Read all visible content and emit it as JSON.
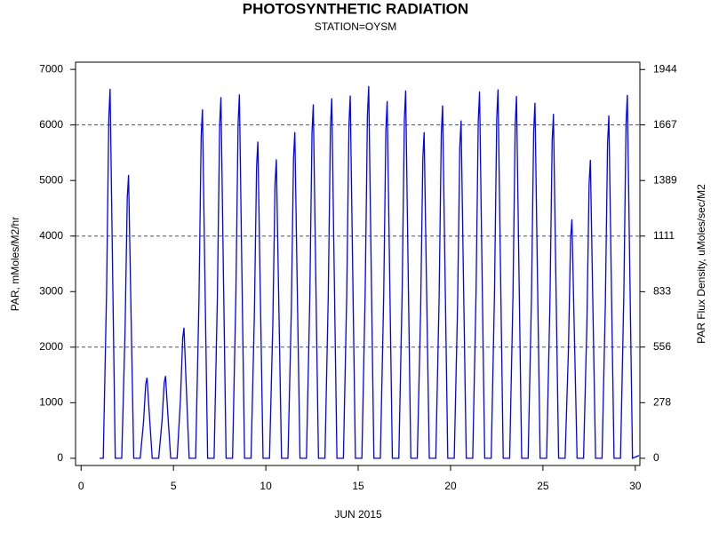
{
  "chart_data": {
    "type": "line",
    "title": "PHOTOSYNTHETIC RADIATION",
    "subtitle": "STATION=OYSM",
    "x_label": "JUN 2015",
    "y_label": "PAR, mMoles/M2/hr",
    "y2_label": "PAR Flux Density, uMoles/sec/M2",
    "xlim": [
      -0.3,
      30.25
    ],
    "xticks": [
      0,
      5,
      10,
      15,
      20,
      25,
      30
    ],
    "ylim": [
      -130,
      7130
    ],
    "yticks": [
      0,
      1000,
      2000,
      3000,
      4000,
      5000,
      6000,
      7000
    ],
    "y2lim": [
      -36.1,
      1980.6
    ],
    "y2ticks": [
      0,
      278,
      556,
      833,
      1111,
      1389,
      1667,
      1944
    ],
    "gridlines": [
      2000,
      4000,
      6000
    ],
    "series": [
      {
        "color": "#0000ff",
        "x": [
          1.0,
          1.2,
          1.38,
          1.5,
          1.57,
          1.68,
          1.85,
          2.2,
          2.38,
          2.5,
          2.57,
          2.68,
          2.85,
          3.2,
          3.38,
          3.5,
          3.57,
          3.68,
          3.85,
          4.2,
          4.38,
          4.5,
          4.57,
          4.68,
          4.85,
          5.2,
          5.38,
          5.5,
          5.57,
          5.68,
          5.85,
          6.2,
          6.38,
          6.5,
          6.57,
          6.68,
          6.85,
          7.2,
          7.38,
          7.5,
          7.57,
          7.68,
          7.85,
          8.2,
          8.38,
          8.5,
          8.57,
          8.68,
          8.85,
          9.2,
          9.38,
          9.5,
          9.57,
          9.68,
          9.85,
          10.2,
          10.38,
          10.5,
          10.57,
          10.68,
          10.85,
          11.2,
          11.38,
          11.5,
          11.57,
          11.68,
          11.85,
          12.2,
          12.38,
          12.5,
          12.57,
          12.68,
          12.85,
          13.2,
          13.38,
          13.5,
          13.57,
          13.68,
          13.85,
          14.2,
          14.38,
          14.5,
          14.57,
          14.68,
          14.85,
          15.2,
          15.38,
          15.5,
          15.57,
          15.68,
          15.85,
          16.2,
          16.38,
          16.5,
          16.57,
          16.68,
          16.85,
          17.2,
          17.38,
          17.5,
          17.57,
          17.68,
          17.85,
          18.2,
          18.38,
          18.5,
          18.57,
          18.68,
          18.85,
          19.2,
          19.38,
          19.5,
          19.57,
          19.68,
          19.85,
          20.2,
          20.38,
          20.5,
          20.57,
          20.68,
          20.85,
          21.2,
          21.38,
          21.5,
          21.57,
          21.68,
          21.85,
          22.2,
          22.38,
          22.5,
          22.57,
          22.68,
          22.85,
          23.2,
          23.38,
          23.5,
          23.57,
          23.68,
          23.85,
          24.2,
          24.38,
          24.5,
          24.57,
          24.68,
          24.85,
          25.2,
          25.38,
          25.5,
          25.57,
          25.68,
          25.85,
          26.2,
          26.38,
          26.5,
          26.57,
          26.68,
          26.85,
          27.2,
          27.38,
          27.5,
          27.57,
          27.68,
          27.85,
          28.2,
          28.38,
          28.5,
          28.57,
          28.68,
          28.85,
          29.2,
          29.38,
          29.5,
          29.57,
          29.68,
          29.85,
          30.2
        ],
        "values": [
          0,
          0,
          2993,
          6118,
          6650,
          3990,
          0,
          0,
          2295,
          4692,
          5100,
          3060,
          0,
          0,
          653,
          1334,
          1450,
          870,
          0,
          0,
          666,
          1362,
          1480,
          888,
          0,
          0,
          1058,
          2162,
          2350,
          1410,
          0,
          0,
          2826,
          5778,
          6280,
          3768,
          0,
          0,
          2925,
          5980,
          6500,
          3900,
          0,
          0,
          2948,
          6026,
          6550,
          3930,
          0,
          0,
          2565,
          5244,
          5700,
          3420,
          0,
          0,
          2421,
          4950,
          5380,
          3228,
          0,
          0,
          2642,
          5400,
          5870,
          3522,
          0,
          0,
          2867,
          5860,
          6370,
          3822,
          0,
          0,
          2916,
          5962,
          6480,
          3888,
          0,
          0,
          2939,
          6008,
          6530,
          3918,
          0,
          0,
          3015,
          6164,
          6700,
          4020,
          0,
          0,
          2894,
          5916,
          6430,
          3858,
          0,
          0,
          2979,
          6090,
          6620,
          3972,
          0,
          0,
          2642,
          5400,
          5870,
          3522,
          0,
          0,
          2858,
          5842,
          6350,
          3810,
          0,
          0,
          2736,
          5594,
          6080,
          3648,
          0,
          0,
          2970,
          6072,
          6600,
          3960,
          0,
          0,
          2988,
          6109,
          6640,
          3984,
          0,
          0,
          2934,
          5998,
          6520,
          3912,
          0,
          0,
          2880,
          5888,
          6400,
          3840,
          0,
          0,
          2790,
          5704,
          6200,
          3720,
          0,
          0,
          1935,
          3956,
          4300,
          2580,
          0,
          0,
          2417,
          4940,
          5370,
          3222,
          0,
          0,
          2777,
          5676,
          6170,
          3702,
          0,
          0,
          2943,
          6017,
          6540,
          3924,
          0,
          50
        ]
      }
    ]
  }
}
